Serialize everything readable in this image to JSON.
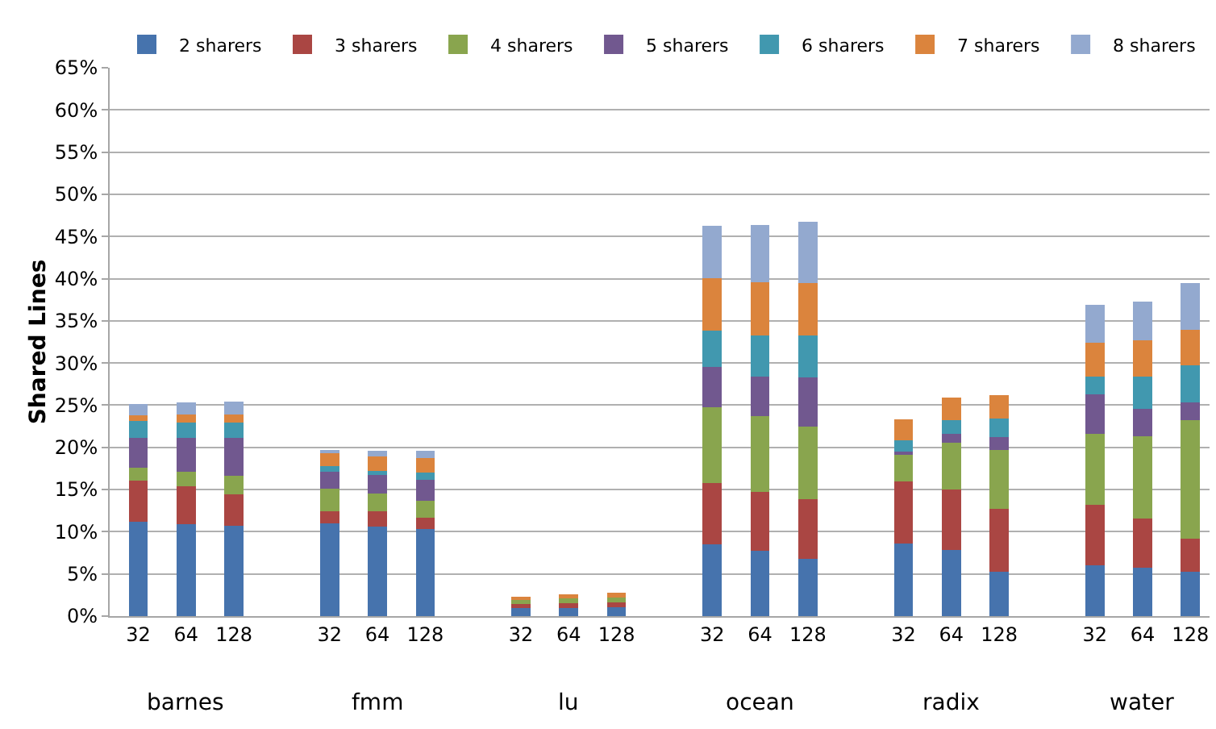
{
  "chart_data": {
    "type": "bar",
    "stacked": true,
    "ylabel": "Shared Lines",
    "categories": [
      "32",
      "64",
      "128",
      "32",
      "64",
      "128",
      "32",
      "64",
      "128",
      "32",
      "64",
      "128",
      "32",
      "64",
      "128",
      "32",
      "64",
      "128"
    ],
    "annotations": [
      "barnes",
      "fmm",
      "lu",
      "ocean",
      "radix",
      "water"
    ],
    "series": [
      {
        "name": "2 sharers",
        "color": "#4673ad",
        "values": [
          11.2,
          10.9,
          10.7,
          11.0,
          10.6,
          10.3,
          1.0,
          1.0,
          1.1,
          8.5,
          7.7,
          6.8,
          8.6,
          7.8,
          5.3,
          6.0,
          5.7,
          5.3
        ]
      },
      {
        "name": "3 sharers",
        "color": "#aa4643",
        "values": [
          4.9,
          4.5,
          3.7,
          1.4,
          1.8,
          1.4,
          0.4,
          0.5,
          0.5,
          7.3,
          7.0,
          7.1,
          7.4,
          7.2,
          7.4,
          7.2,
          5.9,
          3.9
        ]
      },
      {
        "name": "4 sharers",
        "color": "#89a54e",
        "values": [
          1.5,
          1.7,
          2.2,
          2.7,
          2.1,
          2.0,
          0.5,
          0.6,
          0.6,
          9.0,
          9.0,
          8.6,
          3.1,
          5.6,
          7.0,
          8.4,
          9.7,
          14.0
        ]
      },
      {
        "name": "5 sharers",
        "color": "#71588f",
        "values": [
          3.5,
          4.0,
          4.5,
          2.0,
          2.2,
          2.5,
          null,
          null,
          null,
          4.7,
          4.7,
          5.8,
          0.4,
          1.0,
          1.5,
          4.7,
          3.3,
          2.1
        ]
      },
      {
        "name": "6 sharers",
        "color": "#4198af",
        "values": [
          2.0,
          1.8,
          1.8,
          0.7,
          0.5,
          0.8,
          null,
          null,
          null,
          4.3,
          4.9,
          5.0,
          1.3,
          1.6,
          2.2,
          2.1,
          3.8,
          4.4
        ]
      },
      {
        "name": "7 sharers",
        "color": "#db843d",
        "values": [
          0.7,
          1.0,
          1.0,
          1.6,
          1.7,
          1.7,
          0.4,
          0.5,
          0.6,
          6.3,
          6.3,
          6.2,
          2.5,
          2.7,
          2.8,
          4.0,
          4.3,
          4.2
        ]
      },
      {
        "name": "8 sharers",
        "color": "#93a9cf",
        "values": [
          1.3,
          1.4,
          1.5,
          0.2,
          0.7,
          0.9,
          null,
          null,
          null,
          6.2,
          6.8,
          7.2,
          null,
          null,
          null,
          4.5,
          4.6,
          5.6
        ]
      }
    ],
    "ylim": [
      0,
      65
    ],
    "yticks": [
      {
        "value": 0,
        "label": "0%"
      },
      {
        "value": 5,
        "label": "5%"
      },
      {
        "value": 10,
        "label": "10%"
      },
      {
        "value": 15,
        "label": "15%"
      },
      {
        "value": 20,
        "label": "20%"
      },
      {
        "value": 25,
        "label": "25%"
      },
      {
        "value": 30,
        "label": "30%"
      },
      {
        "value": 35,
        "label": "35%"
      },
      {
        "value": 40,
        "label": "40%"
      },
      {
        "value": 45,
        "label": "45%"
      },
      {
        "value": 50,
        "label": "50%"
      },
      {
        "value": 55,
        "label": "55%"
      },
      {
        "value": 60,
        "label": "60%"
      },
      {
        "value": 65,
        "label": "65%"
      }
    ],
    "grid": "y",
    "legend": "top"
  }
}
